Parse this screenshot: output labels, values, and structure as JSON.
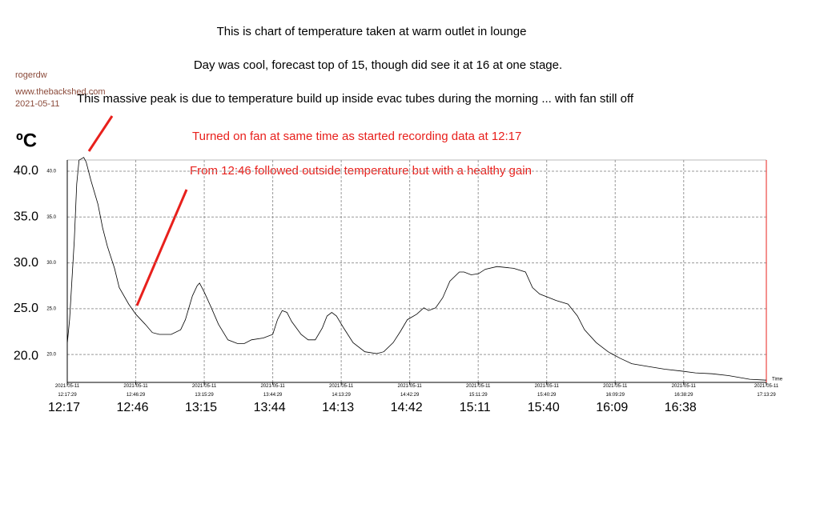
{
  "header": {
    "author": "rogerdw",
    "site": "www.thebackshed.com",
    "date": "2021-05-11"
  },
  "chart_data": {
    "type": "line",
    "title": "This is chart of temperature taken at warm outlet in lounge",
    "subtitle": "Day was cool, forecast top of 15, though did see it at 16 at one stage.",
    "annotations": [
      "This massive peak is due to temperature build up inside evac tubes during the morning ... with fan still off",
      "Turned on fan at same time as started recording data at 12:17",
      "From 12:46 followed outside temperature but with a healthy gain"
    ],
    "y_label": "ºC",
    "x_label": "Time",
    "x": [
      "12:17:29",
      "12:18:29",
      "12:20:29",
      "12:21:29",
      "12:22:29",
      "12:24:29",
      "12:25:29",
      "12:27:29",
      "12:30:29",
      "12:32:29",
      "12:34:29",
      "12:37:29",
      "12:39:29",
      "12:43:29",
      "12:46:29",
      "12:50:29",
      "12:53:29",
      "12:56:29",
      "13:01:29",
      "13:05:29",
      "13:07:29",
      "13:10:29",
      "13:12:29",
      "13:13:29",
      "13:15:29",
      "13:18:29",
      "13:21:29",
      "13:25:29",
      "13:29:29",
      "13:32:29",
      "13:35:29",
      "13:40:29",
      "13:44:29",
      "13:46:29",
      "13:48:29",
      "13:50:29",
      "13:52:29",
      "13:56:29",
      "13:59:29",
      "14:02:29",
      "14:05:29",
      "14:07:29",
      "14:09:29",
      "14:11:29",
      "14:14:29",
      "14:18:29",
      "14:23:29",
      "14:28:29",
      "14:31:29",
      "14:35:29",
      "14:38:29",
      "14:41:29",
      "14:45:29",
      "14:48:29",
      "14:50:29",
      "14:53:29",
      "14:56:29",
      "14:59:29",
      "15:03:29",
      "15:05:29",
      "15:08:29",
      "15:11:29",
      "15:14:29",
      "15:19:29",
      "15:26:29",
      "15:31:29",
      "15:34:29",
      "15:37:29",
      "15:41:29",
      "15:44:29",
      "15:49:29",
      "15:53:29",
      "15:56:29",
      "16:01:29",
      "16:06:29",
      "16:11:29",
      "16:16:29",
      "16:23:29",
      "16:30:29",
      "16:37:29",
      "16:43:29",
      "16:50:29",
      "16:57:29",
      "17:06:29",
      "17:13:29"
    ],
    "series": [
      {
        "color": "#000000",
        "values": [
          21.2,
          23.8,
          32.5,
          38.6,
          41.2,
          41.5,
          41.0,
          39.0,
          36.4,
          33.8,
          31.8,
          29.4,
          27.3,
          25.5,
          24.4,
          23.3,
          22.4,
          22.2,
          22.2,
          22.7,
          23.8,
          26.4,
          27.5,
          27.8,
          26.8,
          25.1,
          23.3,
          21.6,
          21.2,
          21.2,
          21.6,
          21.8,
          22.2,
          23.8,
          24.8,
          24.6,
          23.6,
          22.2,
          21.6,
          21.6,
          22.9,
          24.2,
          24.6,
          24.2,
          22.9,
          21.3,
          20.3,
          20.1,
          20.3,
          21.3,
          22.5,
          23.8,
          24.4,
          25.1,
          24.8,
          25.1,
          26.2,
          28.0,
          29.0,
          29.0,
          28.7,
          28.8,
          29.3,
          29.6,
          29.4,
          29.0,
          27.3,
          26.6,
          26.2,
          25.9,
          25.5,
          24.2,
          22.7,
          21.3,
          20.3,
          19.6,
          19.0,
          18.7,
          18.4,
          18.2,
          18.0,
          17.9,
          17.7,
          17.3,
          17.2
        ]
      }
    ],
    "xlim": [
      "12:17:29",
      "17:13:29"
    ],
    "xticks": [
      {
        "value": "12:17:29",
        "label": "2021-05-11 12:17:29"
      },
      {
        "value": "12:46:29",
        "label": "2021-05-11 12:46:29"
      },
      {
        "value": "13:15:29",
        "label": "2021-05-11 13:15:29"
      },
      {
        "value": "13:44:29",
        "label": "2021-05-11 13:44:29"
      },
      {
        "value": "14:13:29",
        "label": "2021-05-11 14:13:29"
      },
      {
        "value": "14:42:29",
        "label": "2021-05-11 14:42:29"
      },
      {
        "value": "15:11:29",
        "label": "2021-05-11 15:11:29"
      },
      {
        "value": "15:40:29",
        "label": "2021-05-11 15:40:29"
      },
      {
        "value": "16:09:29",
        "label": "2021-05-11 16:09:29"
      },
      {
        "value": "16:38:29",
        "label": "2021-05-11 16:38:29"
      },
      {
        "value": "17:13:29",
        "label": "2021-05-11 17:13:29"
      }
    ],
    "xtick_labels_large": [
      "12:17",
      "12:46",
      "13:15",
      "13:44",
      "14:13",
      "14:42",
      "15:11",
      "15:40",
      "16:09",
      "16:38"
    ],
    "ylim": [
      16.96,
      41.22
    ],
    "yticks": [
      {
        "value": 20,
        "label": "20.0"
      },
      {
        "value": 25,
        "label": "25.0"
      },
      {
        "value": 30,
        "label": "30.0"
      },
      {
        "value": 35,
        "label": "35.0"
      },
      {
        "value": 40,
        "label": "40.0"
      }
    ],
    "grid": true
  }
}
